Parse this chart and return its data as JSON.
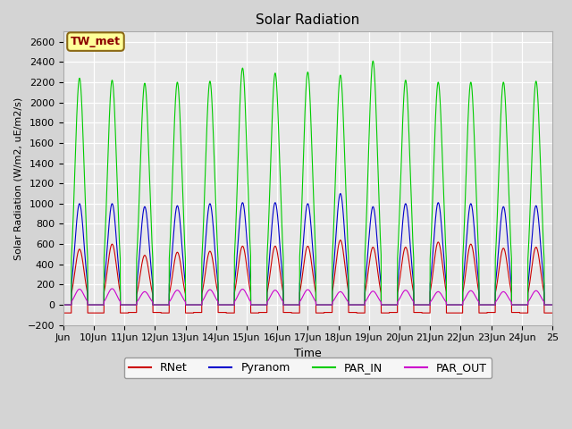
{
  "title": "Solar Radiation",
  "ylabel": "Solar Radiation (W/m2, uE/m2/s)",
  "xlabel": "Time",
  "ylim": [
    -200,
    2700
  ],
  "yticks": [
    -200,
    0,
    200,
    400,
    600,
    800,
    1000,
    1200,
    1400,
    1600,
    1800,
    2000,
    2200,
    2400,
    2600
  ],
  "xlim_start": 9,
  "xlim_end": 25,
  "xtick_labels": [
    "Jun",
    "10Jun",
    "11Jun",
    "12Jun",
    "13Jun",
    "14Jun",
    "15Jun",
    "16Jun",
    "17Jun",
    "18Jun",
    "19Jun",
    "20Jun",
    "21Jun",
    "22Jun",
    "23Jun",
    "24Jun",
    "25"
  ],
  "xtick_positions": [
    9,
    10,
    11,
    12,
    13,
    14,
    15,
    16,
    17,
    18,
    19,
    20,
    21,
    22,
    23,
    24,
    25
  ],
  "colors": {
    "RNet": "#cc0000",
    "Pyranom": "#0000cc",
    "PAR_IN": "#00cc00",
    "PAR_OUT": "#cc00cc"
  },
  "annotation_text": "TW_met",
  "annotation_color": "#8B0000",
  "annotation_bg": "#FFFF99",
  "annotation_border": "#8B6914",
  "fig_bg": "#d4d4d4",
  "plot_bg": "#e8e8e8",
  "n_days": 15,
  "day_peaks": {
    "RNet": [
      550,
      600,
      490,
      520,
      530,
      580,
      580,
      580,
      640,
      570,
      570,
      620,
      600,
      560,
      570
    ],
    "Pyranom": [
      1000,
      1000,
      970,
      980,
      1000,
      1010,
      1010,
      1000,
      1100,
      970,
      1000,
      1010,
      1000,
      970,
      980
    ],
    "PAR_IN": [
      2240,
      2220,
      2190,
      2200,
      2210,
      2340,
      2290,
      2300,
      2270,
      2410,
      2220,
      2200,
      2200,
      2200,
      2210
    ],
    "PAR_OUT": [
      155,
      160,
      130,
      145,
      150,
      155,
      145,
      150,
      130,
      135,
      145,
      130,
      140,
      130,
      140
    ],
    "RNet_neg": [
      -80,
      -80,
      -75,
      -80,
      -75,
      -80,
      -75,
      -80,
      -75,
      -80,
      -75,
      -80,
      -80,
      -75,
      -80
    ]
  }
}
